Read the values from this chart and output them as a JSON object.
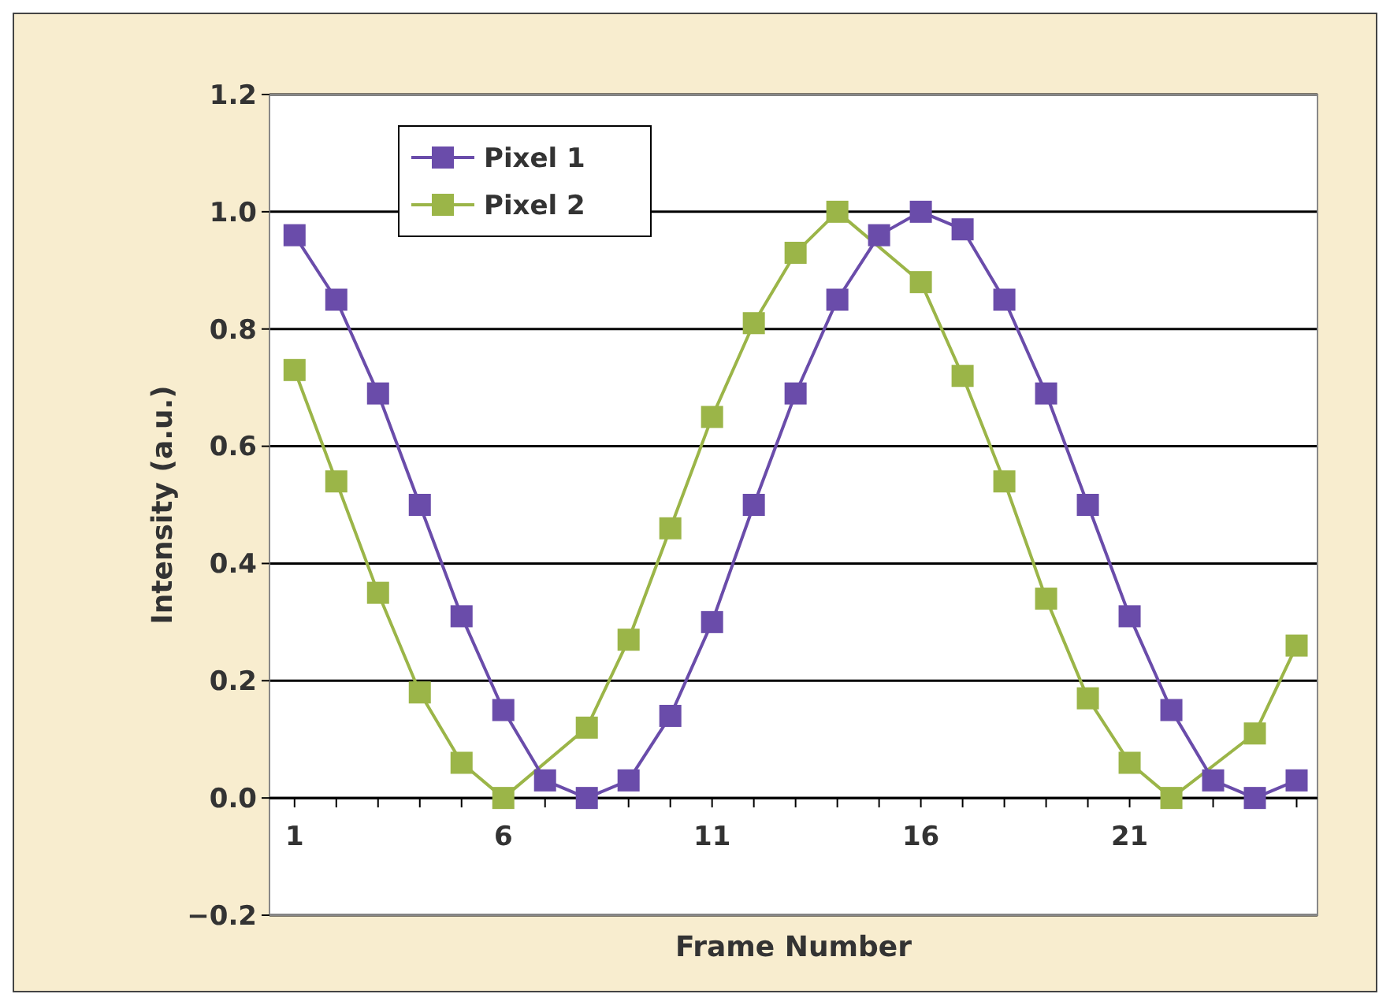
{
  "chart_data": {
    "type": "line",
    "xlabel": "Frame Number",
    "ylabel": "Intensity (a.u.)",
    "x": [
      1,
      2,
      3,
      4,
      5,
      6,
      7,
      8,
      9,
      10,
      11,
      12,
      13,
      14,
      15,
      16,
      17,
      18,
      19,
      20,
      21,
      22,
      23,
      24,
      25
    ],
    "series": [
      {
        "name": "Pixel 1",
        "color": "#6a4caa",
        "values": [
          0.96,
          0.85,
          0.69,
          0.5,
          0.31,
          0.15,
          0.03,
          0.0,
          0.03,
          0.14,
          0.3,
          0.5,
          0.69,
          0.85,
          0.96,
          1.0,
          0.97,
          0.85,
          0.69,
          0.5,
          0.31,
          0.15,
          0.03,
          0.0,
          0.03
        ]
      },
      {
        "name": "Pixel 2",
        "color": "#9bb548",
        "values": [
          0.73,
          0.54,
          0.35,
          0.18,
          0.06,
          0.0,
          null,
          0.12,
          0.27,
          0.46,
          0.65,
          0.81,
          0.93,
          1.0,
          null,
          0.88,
          0.72,
          0.54,
          0.34,
          0.17,
          0.06,
          0.0,
          null,
          0.11,
          0.26
        ]
      }
    ],
    "xlim": [
      0.4,
      25.5
    ],
    "xticks": [
      1,
      {
        "value": 2,
        "label": null
      },
      {
        "value": 3,
        "label": null
      },
      {
        "value": 4,
        "label": null
      },
      {
        "value": 5,
        "label": null
      },
      6,
      {
        "value": 7,
        "label": null
      },
      {
        "value": 8,
        "label": null
      },
      {
        "value": 9,
        "label": null
      },
      {
        "value": 10,
        "label": null
      },
      11,
      {
        "value": 12,
        "label": null
      },
      {
        "value": 13,
        "label": null
      },
      {
        "value": 14,
        "label": null
      },
      {
        "value": 15,
        "label": null
      },
      16,
      {
        "value": 17,
        "label": null
      },
      {
        "value": 18,
        "label": null
      },
      {
        "value": 19,
        "label": null
      },
      {
        "value": 20,
        "label": null
      },
      21,
      {
        "value": 22,
        "label": null
      },
      {
        "value": 23,
        "label": null
      },
      {
        "value": 24,
        "label": null
      },
      {
        "value": 25,
        "label": null
      }
    ],
    "ylim": [
      -0.2,
      1.2
    ],
    "yticks": [
      {
        "value": -0.2,
        "label": "−0.2"
      },
      {
        "value": 0,
        "label": "0.0"
      },
      {
        "value": 0.2,
        "label": "0.2"
      },
      {
        "value": 0.4,
        "label": "0.4"
      },
      {
        "value": 0.6,
        "label": "0.6"
      },
      {
        "value": 0.8,
        "label": "0.8"
      },
      {
        "value": 1,
        "label": "1.0"
      },
      {
        "value": 1.2,
        "label": "1.2"
      }
    ],
    "grid": "y",
    "legend": "top left",
    "marker": "square",
    "line_style": "solid"
  }
}
